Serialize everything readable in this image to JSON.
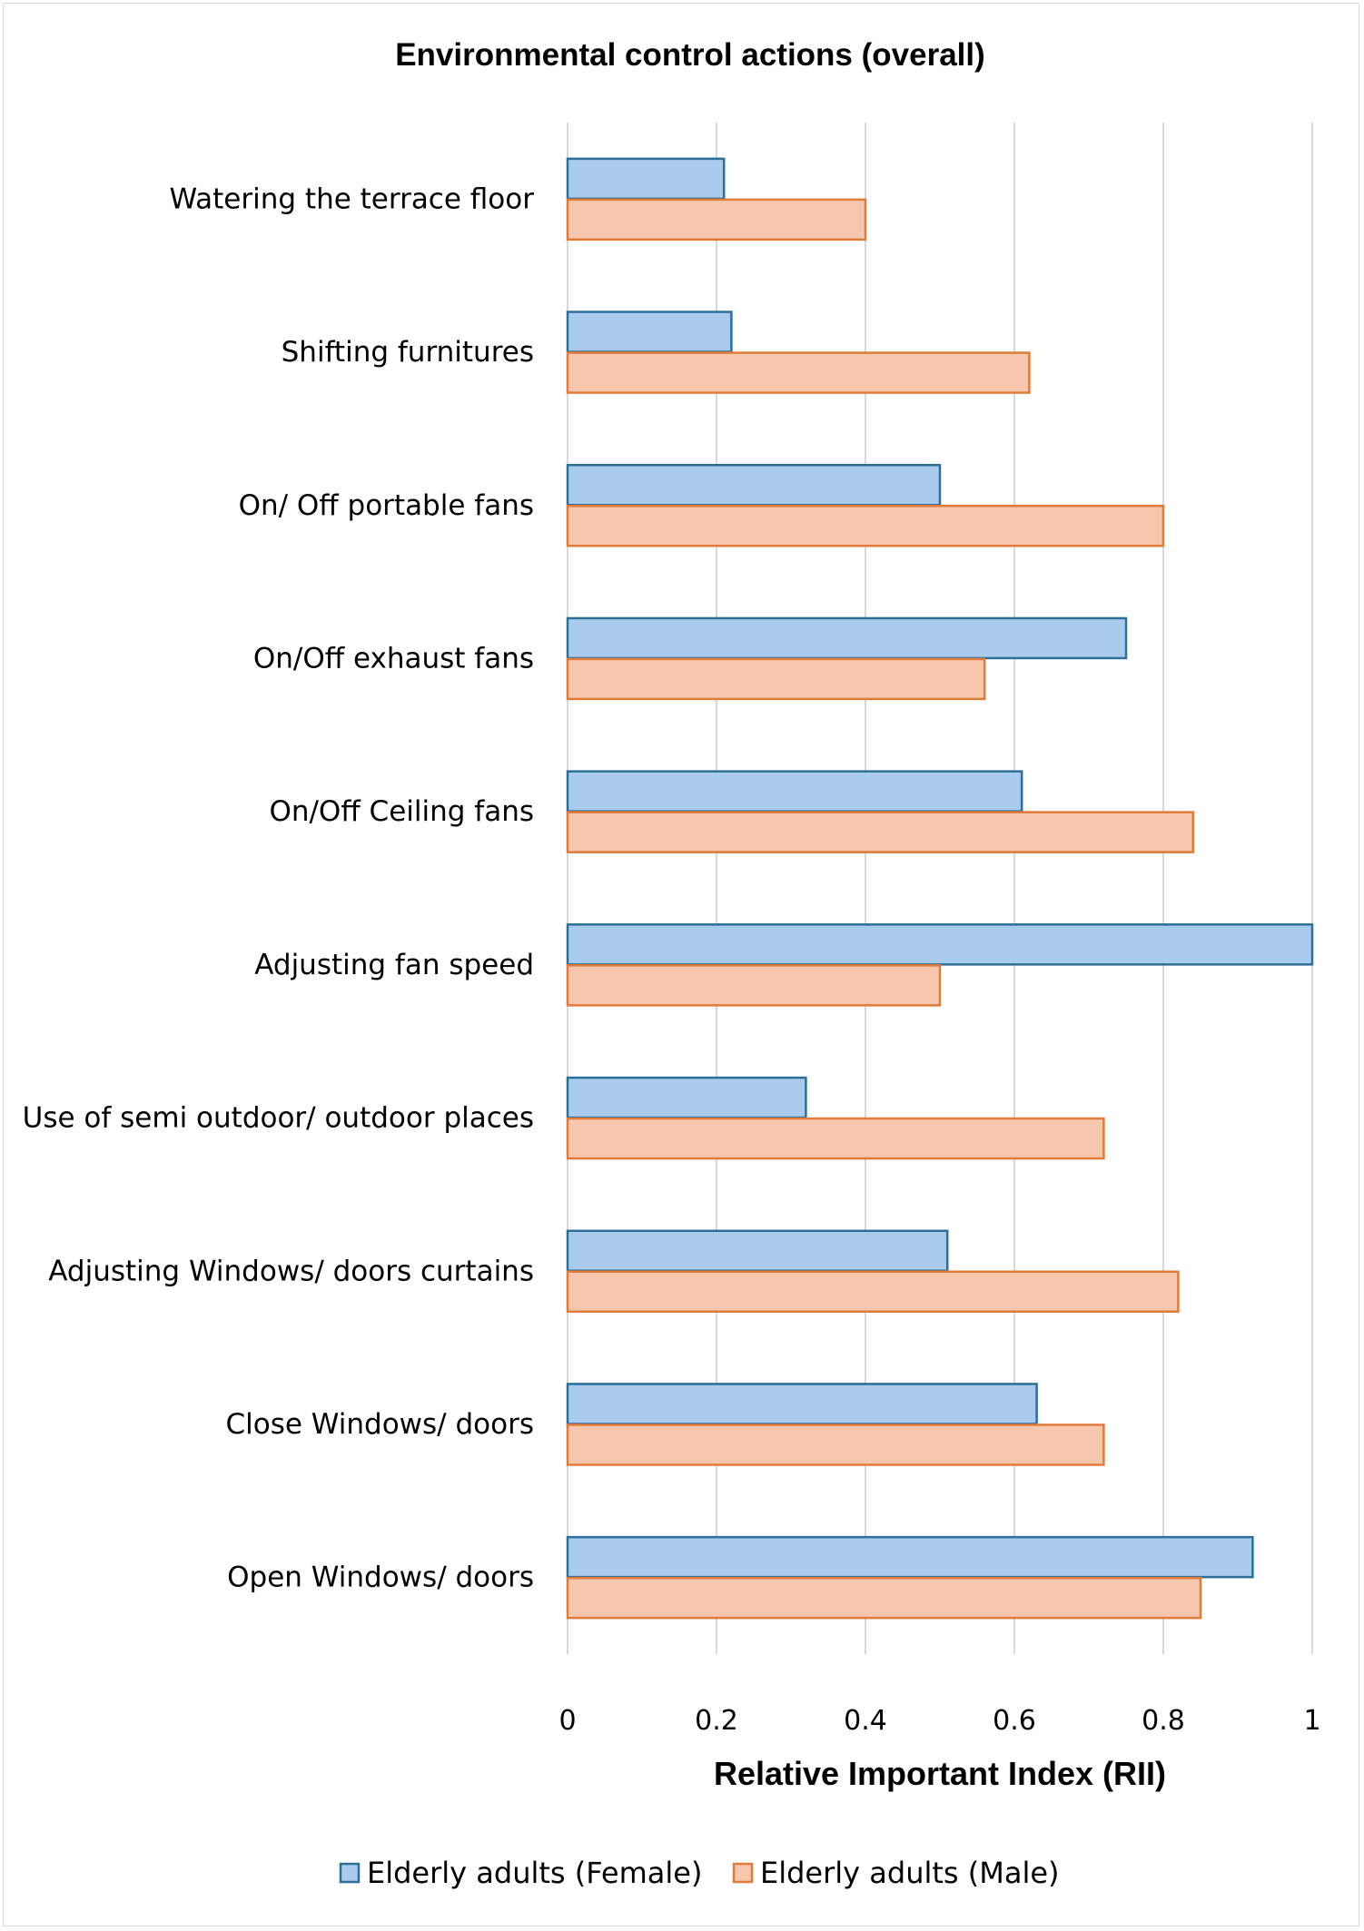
{
  "chart_data": {
    "type": "bar",
    "orientation": "horizontal",
    "title": "Environmental control actions (overall)",
    "xlabel": "Relative Important Index (RII)",
    "ylabel": "",
    "xlim": [
      0,
      1
    ],
    "xticks": [
      "0",
      "0.2",
      "0.4",
      "0.6",
      "0.8",
      "1"
    ],
    "grid": true,
    "legend_position": "bottom",
    "categories": [
      "Watering the terrace floor",
      "Shifting furnitures",
      "On/ Off portable fans",
      "On/Off exhaust fans",
      "On/Off Ceiling fans",
      "Adjusting fan speed",
      "Use of semi outdoor/ outdoor places",
      "Adjusting Windows/ doors curtains",
      "Close Windows/ doors",
      "Open Windows/ doors"
    ],
    "series": [
      {
        "name": "Elderly adults (Female)",
        "fill": "#a9cbee",
        "stroke": "#2e6f98",
        "values": [
          0.21,
          0.22,
          0.5,
          0.75,
          0.61,
          1.0,
          0.32,
          0.51,
          0.63,
          0.92
        ]
      },
      {
        "name": "Elderly adults (Male)",
        "fill": "#f6c6ad",
        "stroke": "#e07b39",
        "values": [
          0.4,
          0.62,
          0.8,
          0.56,
          0.84,
          0.5,
          0.72,
          0.82,
          0.72,
          0.85
        ]
      }
    ]
  }
}
